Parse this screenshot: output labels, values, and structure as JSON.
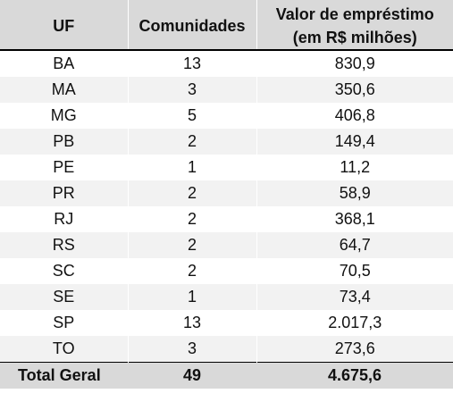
{
  "header": {
    "uf": "UF",
    "comunidades": "Comunidades",
    "valor_line1": "Valor de empréstimo",
    "valor_line2": "(em R$ milhões)"
  },
  "rows": [
    {
      "uf": "BA",
      "comunidades": "13",
      "valor": "830,9"
    },
    {
      "uf": "MA",
      "comunidades": "3",
      "valor": "350,6"
    },
    {
      "uf": "MG",
      "comunidades": "5",
      "valor": "406,8"
    },
    {
      "uf": "PB",
      "comunidades": "2",
      "valor": "149,4"
    },
    {
      "uf": "PE",
      "comunidades": "1",
      "valor": "11,2"
    },
    {
      "uf": "PR",
      "comunidades": "2",
      "valor": "58,9"
    },
    {
      "uf": "RJ",
      "comunidades": "2",
      "valor": "368,1"
    },
    {
      "uf": "RS",
      "comunidades": "2",
      "valor": "64,7"
    },
    {
      "uf": "SC",
      "comunidades": "2",
      "valor": "70,5"
    },
    {
      "uf": "SE",
      "comunidades": "1",
      "valor": "73,4"
    },
    {
      "uf": "SP",
      "comunidades": "13",
      "valor": "2.017,3"
    },
    {
      "uf": "TO",
      "comunidades": "3",
      "valor": "273,6"
    }
  ],
  "total": {
    "label": "Total Geral",
    "comunidades": "49",
    "valor": "4.675,6"
  },
  "colors": {
    "header_bg": "#d9d9d9",
    "stripe_bg": "#f2f2f2",
    "row_bg": "#ffffff",
    "rule": "#000000"
  }
}
